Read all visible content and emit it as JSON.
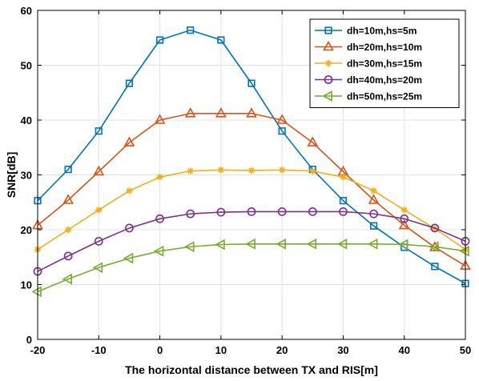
{
  "chart_data": {
    "type": "line",
    "title": "",
    "xlabel": "The horizontal distance between TX and RIS[m]",
    "ylabel": "SNR[dB]",
    "xlim": [
      -20,
      50
    ],
    "ylim": [
      0,
      60
    ],
    "xticks": [
      -20,
      -10,
      0,
      10,
      20,
      30,
      40,
      50
    ],
    "yticks": [
      0,
      10,
      20,
      30,
      40,
      50,
      60
    ],
    "grid": true,
    "legend_position": "top-right",
    "x": [
      -20,
      -15,
      -10,
      -5,
      0,
      5,
      10,
      15,
      20,
      25,
      30,
      35,
      40,
      45,
      50
    ],
    "series": [
      {
        "name": "dh=10m,hs=5m",
        "color": "#0072BD",
        "marker": "square",
        "values": [
          25.3,
          31.0,
          38.0,
          46.7,
          54.6,
          56.4,
          54.6,
          46.7,
          38.0,
          31.0,
          25.3,
          20.7,
          16.8,
          13.3,
          10.2
        ]
      },
      {
        "name": "dh=20m,hs=10m",
        "color": "#D95319",
        "marker": "triangle-up",
        "values": [
          20.8,
          25.4,
          30.6,
          35.9,
          40.0,
          41.2,
          41.2,
          41.2,
          40.0,
          35.9,
          30.6,
          25.4,
          20.8,
          16.8,
          13.4
        ]
      },
      {
        "name": "dh=30m,hs=15m",
        "color": "#EDB120",
        "marker": "asterisk",
        "values": [
          16.4,
          20.0,
          23.6,
          27.1,
          29.6,
          30.7,
          30.9,
          30.8,
          30.9,
          30.7,
          29.6,
          27.1,
          23.6,
          20.2,
          16.4
        ]
      },
      {
        "name": "dh=40m,hs=20m",
        "color": "#7E2F8E",
        "marker": "circle",
        "values": [
          12.4,
          15.2,
          17.9,
          20.3,
          22.0,
          22.9,
          23.2,
          23.3,
          23.3,
          23.3,
          23.3,
          22.9,
          22.0,
          20.3,
          17.9
        ]
      },
      {
        "name": "dh=50m,hs=25m",
        "color": "#77AC30",
        "marker": "triangle-left",
        "values": [
          8.7,
          11.0,
          13.1,
          14.8,
          16.1,
          16.9,
          17.3,
          17.4,
          17.4,
          17.4,
          17.4,
          17.4,
          17.3,
          16.9,
          16.1
        ]
      }
    ]
  }
}
